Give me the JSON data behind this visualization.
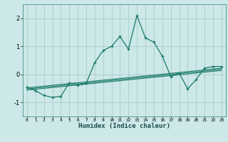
{
  "title": "",
  "xlabel": "Humidex (Indice chaleur)",
  "bg_color": "#cce8e8",
  "grid_color": "#aacccc",
  "line_color": "#1a7a6a",
  "xlim": [
    -0.5,
    23.5
  ],
  "ylim": [
    -1.5,
    2.5
  ],
  "x_ticks": [
    0,
    1,
    2,
    3,
    4,
    5,
    6,
    7,
    8,
    9,
    10,
    11,
    12,
    13,
    14,
    15,
    16,
    17,
    18,
    19,
    20,
    21,
    22,
    23
  ],
  "y_ticks": [
    -1,
    0,
    1,
    2
  ],
  "main_line": {
    "x": [
      0,
      1,
      2,
      3,
      4,
      5,
      6,
      7,
      8,
      9,
      10,
      11,
      12,
      13,
      14,
      15,
      16,
      17,
      18,
      19,
      20,
      21,
      22,
      23
    ],
    "y": [
      -0.45,
      -0.58,
      -0.75,
      -0.82,
      -0.78,
      -0.3,
      -0.38,
      -0.32,
      0.42,
      0.85,
      1.0,
      1.35,
      0.9,
      2.1,
      1.3,
      1.15,
      0.65,
      -0.08,
      0.05,
      -0.52,
      -0.18,
      0.22,
      0.28,
      0.28
    ]
  },
  "trend_lines": [
    {
      "x": [
        0,
        23
      ],
      "y": [
        -0.48,
        0.22
      ]
    },
    {
      "x": [
        0,
        23
      ],
      "y": [
        -0.52,
        0.18
      ]
    },
    {
      "x": [
        0,
        23
      ],
      "y": [
        -0.56,
        0.14
      ]
    }
  ]
}
